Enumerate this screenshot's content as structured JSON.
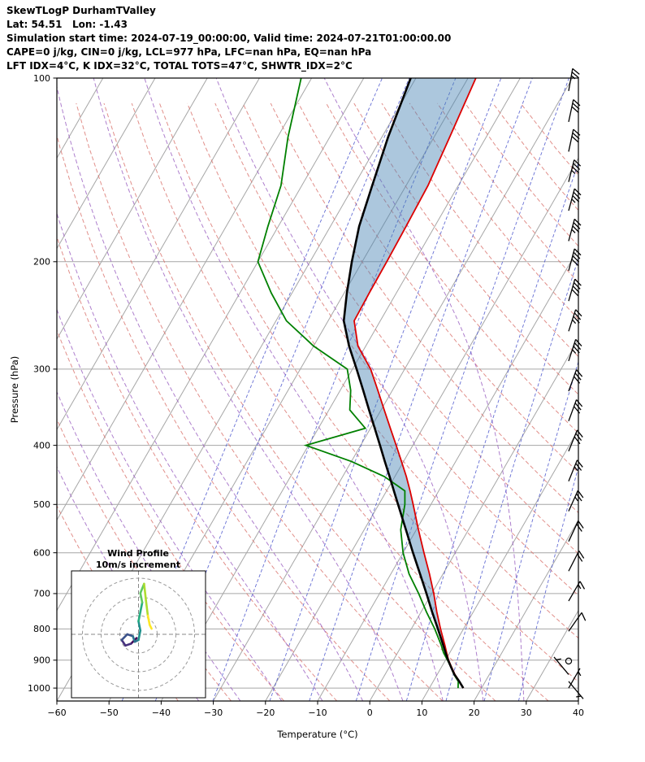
{
  "header": {
    "title": "SkewTLogP DurhamTValley",
    "location": "Lat: 54.51   Lon: -1.43",
    "times": "Simulation start time: 2024-07-19_00:00:00, Valid time: 2024-07-21T01:00:00.00",
    "indices1": "CAPE=0 j/kg, CIN=0 j/kg, LCL=977 hPa, LFC=nan hPa, EQ=nan hPa",
    "indices2": "LFT IDX=4°C, K IDX=32°C, TOTAL TOTS=47°C, SHWTR_IDX=2°C"
  },
  "chart_data": {
    "type": "skewt_logp",
    "xlabel": "Temperature (°C)",
    "ylabel": "Pressure (hPa)",
    "xlim": [
      -60,
      40
    ],
    "x_ticks": [
      -60,
      -50,
      -40,
      -30,
      -20,
      -10,
      0,
      10,
      20,
      30,
      40
    ],
    "p_ticks": [
      100,
      200,
      300,
      400,
      500,
      600,
      700,
      800,
      900,
      1000
    ],
    "p_range": [
      100,
      1050
    ],
    "skew_tan": 0.577,
    "background": {
      "isotherms_c": {
        "min": -150,
        "max": 40,
        "step": 10
      },
      "dry_adiabats_c": {
        "min": -40,
        "max": 170,
        "step": 10
      },
      "moist_adiabats_c": [
        -36,
        -28,
        -20,
        -12,
        -4,
        4,
        12,
        20,
        28
      ],
      "mixing_ratios_gkg": [
        0.05,
        0.1,
        0.3,
        0.8,
        1.5,
        3,
        6,
        10,
        16,
        24
      ],
      "colors": {
        "grid": "#a6a6a6",
        "isotherm": "#a6a6a6",
        "dry_adiabat": "#d9736d",
        "moist_adiabat": "#9a5fc0",
        "mixing_ratio": "#4a55cc",
        "cape_fill": "rgba(70,130,180,0.45)",
        "temperature": "#dd0000",
        "dewpoint": "#008000",
        "parcel": "#000000"
      }
    },
    "sounding": {
      "pressure_hpa": [
        1000,
        975,
        950,
        925,
        900,
        875,
        850,
        800,
        750,
        700,
        650,
        600,
        550,
        500,
        475,
        450,
        425,
        400,
        375,
        350,
        325,
        300,
        275,
        250,
        225,
        200,
        175,
        150,
        125,
        100
      ],
      "temperature_c": [
        16.5,
        15.0,
        13.4,
        12.0,
        10.6,
        9.4,
        8.2,
        5.6,
        3.0,
        0.4,
        -2.6,
        -6.0,
        -9.6,
        -13.4,
        -15.5,
        -17.8,
        -20.4,
        -23.2,
        -26.2,
        -29.4,
        -32.8,
        -36.5,
        -41.5,
        -45.0,
        -45.2,
        -45.3,
        -45.5,
        -45.8,
        -47.0,
        -48.5
      ],
      "dewpoint_c": [
        15.5,
        14.8,
        13.2,
        11.9,
        10.4,
        8.8,
        7.5,
        4.5,
        1.0,
        -2.5,
        -6.5,
        -10.0,
        -13.0,
        -15.0,
        -16.5,
        -22.0,
        -30.0,
        -40.5,
        -31.0,
        -36.0,
        -38.0,
        -41.0,
        -50.0,
        -58.0,
        -64.0,
        -70.0,
        -72.0,
        -74.0,
        -78.0,
        -82.0
      ],
      "parcel_c": [
        16.5,
        15.0,
        13.3,
        11.9,
        10.5,
        9.2,
        7.9,
        5.1,
        2.1,
        -1.0,
        -4.4,
        -8.1,
        -12.0,
        -16.3,
        -18.6,
        -21.0,
        -23.6,
        -26.3,
        -29.2,
        -32.3,
        -35.6,
        -39.2,
        -43.2,
        -47.0,
        -49.5,
        -52.0,
        -54.5,
        -56.5,
        -58.8,
        -61.0
      ]
    },
    "winds": {
      "pressure_hpa": [
        105,
        118,
        132,
        148,
        165,
        185,
        207,
        232,
        260,
        291,
        326,
        365,
        409,
        458,
        513,
        575,
        643,
        720,
        807,
        903,
        950,
        975,
        1000
      ],
      "speed_kt": [
        25,
        30,
        30,
        35,
        35,
        35,
        40,
        40,
        38,
        35,
        33,
        32,
        30,
        28,
        25,
        22,
        20,
        18,
        12,
        0,
        8,
        8,
        5
      ],
      "direction_deg": [
        10,
        12,
        12,
        14,
        15,
        15,
        15,
        16,
        18,
        18,
        20,
        20,
        22,
        22,
        24,
        25,
        27,
        30,
        35,
        0,
        320,
        140,
        30
      ]
    },
    "hodograph": {
      "title_line1": "Wind Profile",
      "title_line2": "10m/s increment",
      "ring_interval_ms": 10,
      "rings_ms": [
        10,
        20,
        30
      ],
      "u_ms": [
        -1,
        -4,
        -7,
        -9,
        -6,
        -3,
        -2,
        0,
        1,
        0,
        1,
        2,
        1,
        3,
        4,
        5,
        6,
        7
      ],
      "v_ms": [
        -2,
        -5,
        -6,
        -3,
        0,
        -1,
        -4,
        -3,
        2,
        7,
        12,
        17,
        22,
        27,
        18,
        10,
        5,
        3
      ]
    }
  }
}
